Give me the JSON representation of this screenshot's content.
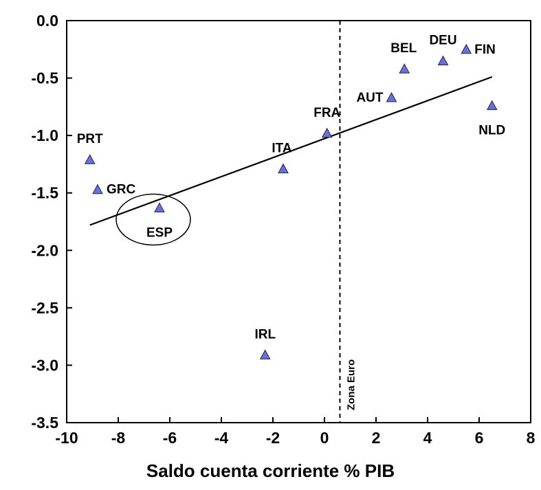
{
  "chart_data": {
    "type": "scatter",
    "title": "",
    "xlabel": "Saldo cuenta corriente % PIB",
    "ylabel": "",
    "xlim": [
      -10,
      8
    ],
    "ylim": [
      -3.5,
      0.0
    ],
    "x_ticks": [
      -10,
      -8,
      -6,
      -4,
      -2,
      0,
      2,
      4,
      6,
      8
    ],
    "x_tick_labels": [
      "-10",
      "-8",
      "-6",
      "-4",
      "-2",
      "0",
      "2",
      "4",
      "6",
      "8"
    ],
    "y_ticks": [
      0.0,
      -0.5,
      -1.0,
      -1.5,
      -2.0,
      -2.5,
      -3.0,
      -3.5
    ],
    "y_tick_labels": [
      "0.0",
      "-0.5",
      "-1.0",
      "-1.5",
      "-2.0",
      "-2.5",
      "-3.0",
      "-3.5"
    ],
    "grid": false,
    "legend": "none",
    "marker": "triangle",
    "marker_color": "#6A6FE0",
    "points": [
      {
        "label": "PRT",
        "x": -9.1,
        "y": -1.21
      },
      {
        "label": "GRC",
        "x": -8.8,
        "y": -1.47
      },
      {
        "label": "ESP",
        "x": -6.4,
        "y": -1.63
      },
      {
        "label": "IRL",
        "x": -2.3,
        "y": -2.91
      },
      {
        "label": "ITA",
        "x": -1.6,
        "y": -1.29
      },
      {
        "label": "FRA",
        "x": 0.1,
        "y": -0.98
      },
      {
        "label": "AUT",
        "x": 2.6,
        "y": -0.67
      },
      {
        "label": "BEL",
        "x": 3.1,
        "y": -0.42
      },
      {
        "label": "DEU",
        "x": 4.6,
        "y": -0.35
      },
      {
        "label": "FIN",
        "x": 5.5,
        "y": -0.25
      },
      {
        "label": "NLD",
        "x": 6.5,
        "y": -0.74
      }
    ],
    "trend_line": {
      "x": [
        -9.1,
        6.5
      ],
      "y": [
        -1.78,
        -0.49
      ]
    },
    "reference_line": {
      "x": 0.6,
      "label": "Zona Euro",
      "style": "dashed"
    },
    "highlight": {
      "label": "ESP",
      "shape": "ellipse"
    }
  }
}
